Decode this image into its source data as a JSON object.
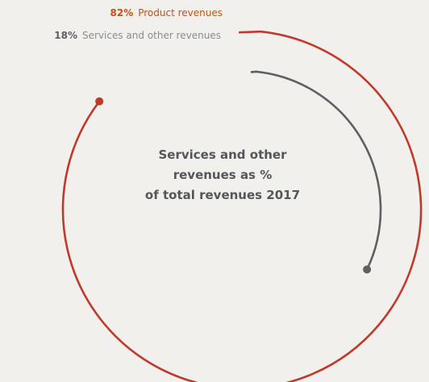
{
  "colors": {
    "background": "#f1f0ec",
    "product": "#c0392b",
    "services": "#5f6064",
    "product_label": "#c94f12",
    "services_label": "#8a8b8e",
    "title": "#55565a"
  },
  "chart_data": {
    "type": "pie",
    "variant": "open-ring",
    "title_lines": [
      "Services and other",
      "revenues as %",
      "of total revenues 2017"
    ],
    "series": [
      {
        "name": "Product revenues",
        "value": 82,
        "value_label": "82%"
      },
      {
        "name": "Services and other revenues",
        "value": 18,
        "value_label": "18%"
      }
    ],
    "legend_position": "top-left"
  }
}
